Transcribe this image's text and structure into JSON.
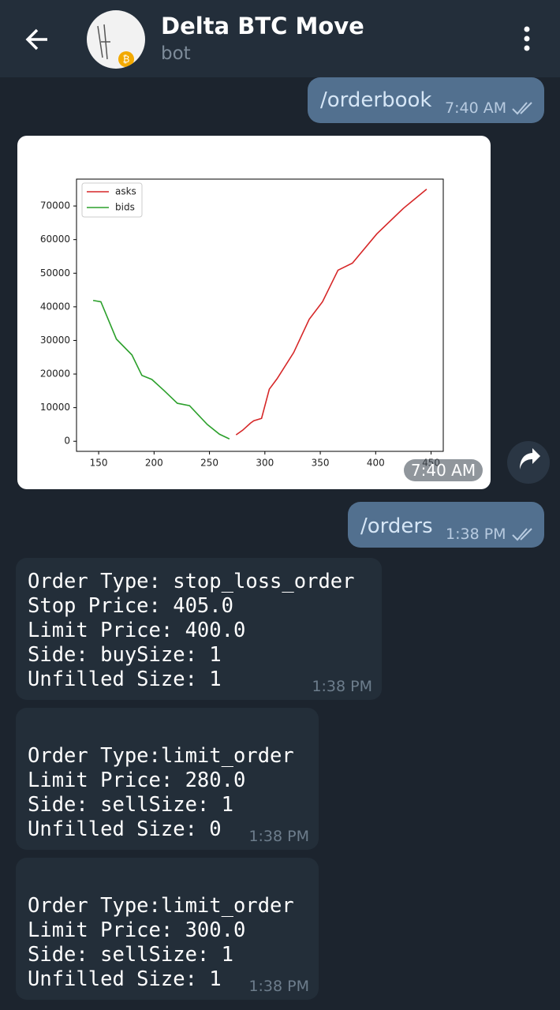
{
  "header": {
    "title": "Delta BTC Move",
    "subtitle": "bot"
  },
  "messages": [
    {
      "text": "/orderbook",
      "time": "7:40 AM"
    },
    {
      "time": "7:40 AM",
      "chart_data": {
        "type": "line",
        "series": [
          {
            "name": "asks",
            "color": "#d62728",
            "x": [
              274,
              280,
              287,
              290,
              297,
              304,
              311,
              326,
              340,
              352,
              366,
              379,
              401,
              425,
              446
            ],
            "values": [
              1900,
              3300,
              5400,
              6100,
              6800,
              15500,
              18600,
              26400,
              36300,
              41500,
              50900,
              53000,
              61700,
              69300,
              75000
            ]
          },
          {
            "name": "bids",
            "color": "#2ca02c",
            "x": [
              145,
              152,
              166,
              180,
              189,
              198,
              209,
              221,
              232,
              248,
              259,
              268
            ],
            "values": [
              41900,
              41500,
              30400,
              25700,
              19600,
              18400,
              15100,
              11300,
              10600,
              5000,
              2100,
              700
            ]
          }
        ],
        "xlim": [
          130,
          461
        ],
        "ylim": [
          -3000,
          78000
        ],
        "xticks": [
          150,
          200,
          250,
          300,
          350,
          400,
          450
        ],
        "yticks": [
          0,
          10000,
          20000,
          30000,
          40000,
          50000,
          60000,
          70000
        ],
        "legend": "upper left"
      }
    },
    {
      "text": "/orders",
      "time": "1:38 PM"
    },
    {
      "lines": [
        "Order Type: stop_loss_order",
        "Stop Price: 405.0",
        "Limit Price: 400.0",
        "Side: buySize: 1",
        "Unfilled Size: 1"
      ],
      "time": "1:38 PM"
    },
    {
      "lines": [
        "Order Type:limit_order",
        "Limit Price: 280.0",
        "Side: sellSize: 1",
        "Unfilled Size: 0"
      ],
      "time": "1:38 PM"
    },
    {
      "lines": [
        "Order Type:limit_order",
        "Limit Price: 300.0",
        "Side: sellSize: 1",
        "Unfilled Size: 1"
      ],
      "time": "1:38 PM"
    }
  ]
}
